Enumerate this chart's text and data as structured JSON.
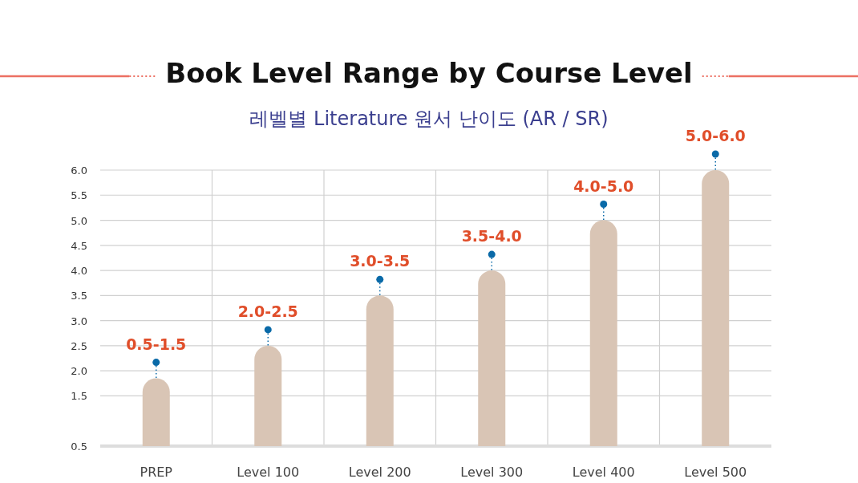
{
  "chart_data": {
    "type": "bar",
    "title": "Book Level Range by Course Level",
    "subtitle": "레벨별 Literature 원서 난이도 (AR / SR)",
    "categories": [
      "PREP",
      "Level 100",
      "Level 200",
      "Level 300",
      "Level 400",
      "Level 500"
    ],
    "values": [
      1.85,
      2.5,
      3.5,
      4.0,
      5.0,
      6.0
    ],
    "color": "#d9c5b5",
    "value_labels": [
      "0.5-1.5",
      "2.0-2.5",
      "3.0-3.5",
      "3.5-4.0",
      "4.0-5.0",
      "5.0-6.0"
    ],
    "ylim": [
      0.5,
      6.0
    ],
    "yticks": [
      {
        "value": 0.5,
        "label": "0.5"
      },
      {
        "value": 1.5,
        "label": "1.5"
      },
      {
        "value": 2,
        "label": "2.0"
      },
      {
        "value": 2.5,
        "label": "2.5"
      },
      {
        "value": 3,
        "label": "3.0"
      },
      {
        "value": 3.5,
        "label": "3.5"
      },
      {
        "value": 4,
        "label": "4.0"
      },
      {
        "value": 4.5,
        "label": "4.5"
      },
      {
        "value": 5,
        "label": "5.0"
      },
      {
        "value": 5.5,
        "label": "5.5"
      },
      {
        "value": 6,
        "label": "6.0"
      }
    ],
    "grid": true,
    "marker": "circle"
  }
}
